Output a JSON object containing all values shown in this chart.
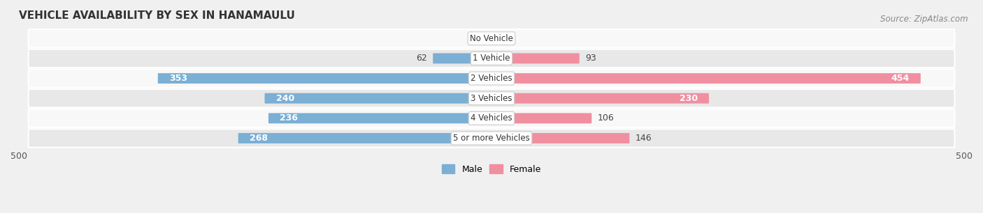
{
  "title": "VEHICLE AVAILABILITY BY SEX IN HANAMAULU",
  "source": "Source: ZipAtlas.com",
  "categories": [
    "No Vehicle",
    "1 Vehicle",
    "2 Vehicles",
    "3 Vehicles",
    "4 Vehicles",
    "5 or more Vehicles"
  ],
  "male_values": [
    0,
    62,
    353,
    240,
    236,
    268
  ],
  "female_values": [
    1,
    93,
    454,
    230,
    106,
    146
  ],
  "male_color": "#7bafd4",
  "female_color": "#f08fa0",
  "male_label": "Male",
  "female_label": "Female",
  "xlim": 500,
  "bar_height": 0.52,
  "bg_color": "#f0f0f0",
  "row_bg_light": "#f8f8f8",
  "row_bg_dark": "#e8e8e8",
  "title_fontsize": 11,
  "source_fontsize": 8.5,
  "label_fontsize": 9,
  "axis_tick_fontsize": 9,
  "category_fontsize": 8.5,
  "inside_label_threshold": 150
}
